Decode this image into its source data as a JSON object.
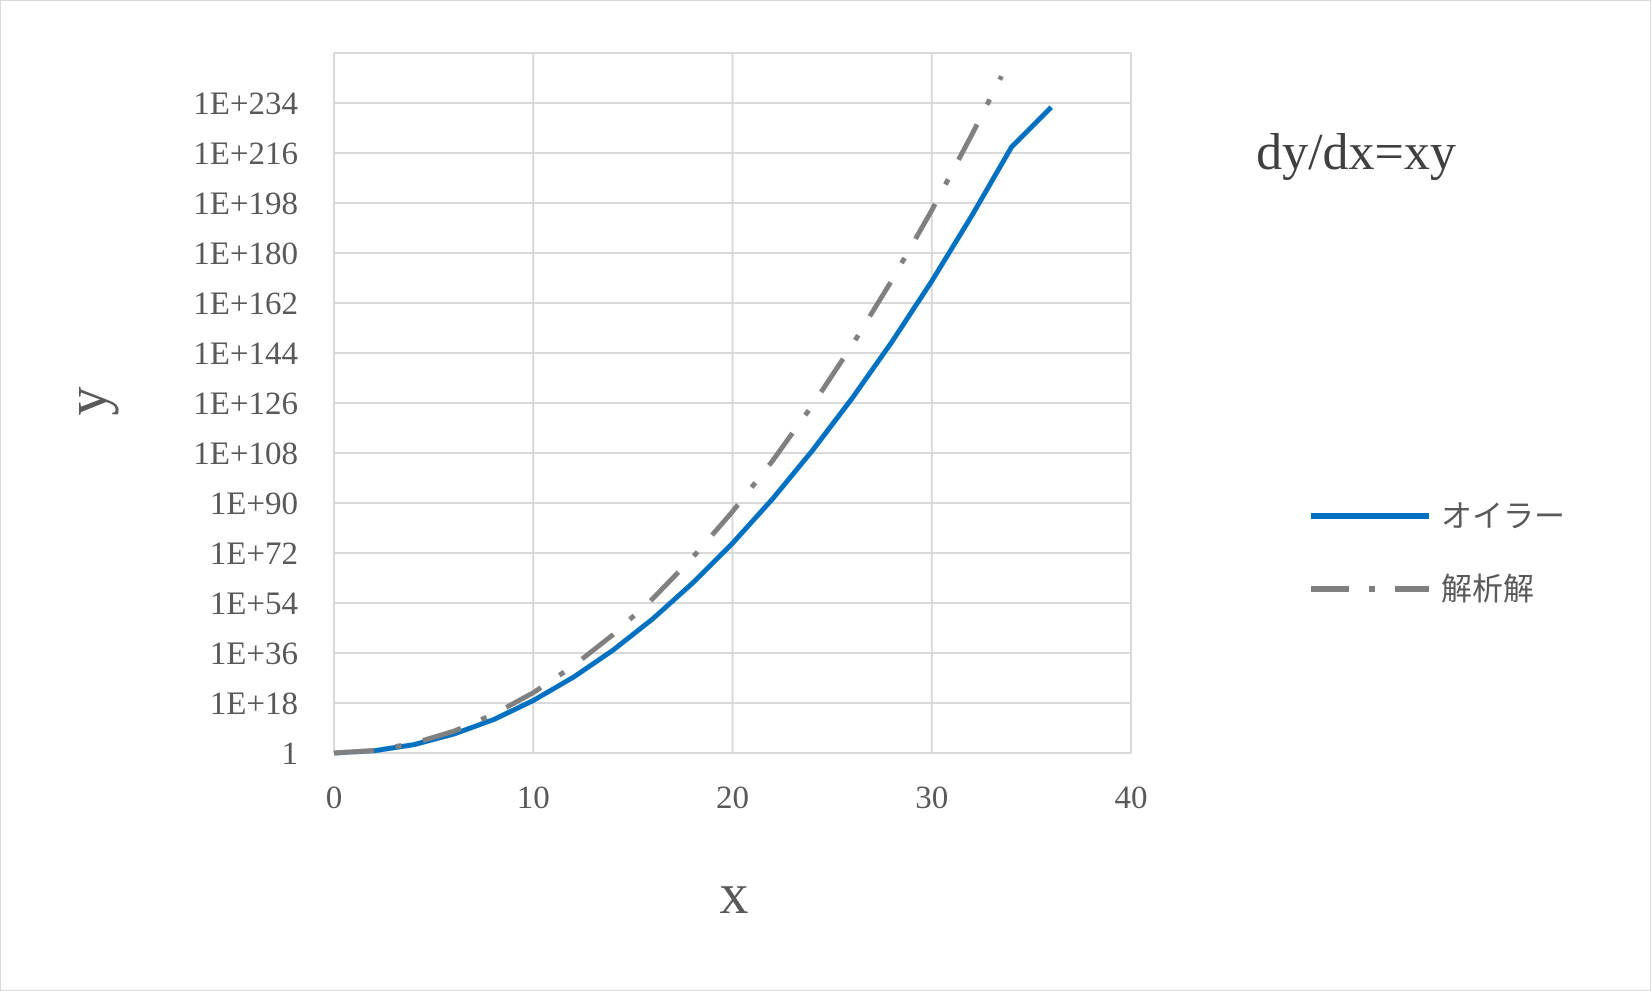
{
  "chart_data": {
    "type": "line",
    "title": "",
    "annotation": "dy/dx=xy",
    "xlabel": "x",
    "ylabel": "y",
    "xlim": [
      0,
      40
    ],
    "x_ticks": [
      "0",
      "10",
      "20",
      "30",
      "40"
    ],
    "y_scale": "log10",
    "ylim_log10": [
      0,
      252
    ],
    "y_ticks": [
      "1",
      "1E+18",
      "1E+36",
      "1E+54",
      "1E+72",
      "1E+90",
      "1E+108",
      "1E+126",
      "1E+144",
      "1E+162",
      "1E+180",
      "1E+198",
      "1E+216",
      "1E+234"
    ],
    "y_tick_values_log10": [
      0,
      18,
      36,
      54,
      72,
      90,
      108,
      126,
      144,
      162,
      180,
      198,
      216,
      234
    ],
    "grid": true,
    "legend_position": "right",
    "series": [
      {
        "name": "オイラー",
        "color": "#0070C0",
        "style": "solid",
        "x": [
          0,
          2,
          4,
          6,
          8,
          10,
          12,
          14,
          16,
          18,
          20,
          22,
          24,
          26,
          28,
          30,
          32,
          34,
          36
        ],
        "y_log10": [
          0,
          0.8,
          3.0,
          6.8,
          12.0,
          18.9,
          27.2,
          37.0,
          48.3,
          61.2,
          75.5,
          91.4,
          108.8,
          127.7,
          148.0,
          169.9,
          193.3,
          218.1,
          232.5
        ]
      },
      {
        "name": "解析解",
        "color": "#808080",
        "style": "dashdot",
        "x": [
          0,
          2,
          4,
          6,
          8,
          10,
          12,
          14,
          16,
          18,
          20,
          22,
          24,
          26,
          28,
          30,
          32,
          33.5
        ],
        "y_log10": [
          0,
          0.9,
          3.5,
          7.8,
          13.9,
          21.7,
          31.3,
          42.6,
          55.6,
          70.4,
          86.9,
          105.1,
          125.1,
          146.8,
          170.2,
          195.4,
          222.4,
          243.7
        ]
      }
    ]
  }
}
